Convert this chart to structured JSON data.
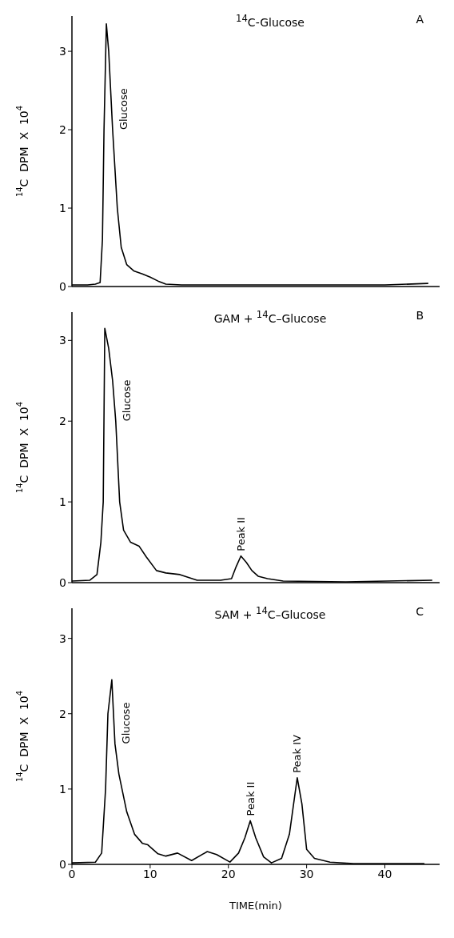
{
  "chart_data": [
    {
      "type": "line",
      "title": "$^{14}$C-Glucose",
      "ylabel": "$^{14}$C  DPM  X  10$^{4}$",
      "color": "#000000",
      "marker": "none",
      "line_style": "solid",
      "tick_labels": "y",
      "x": [
        0,
        2,
        3,
        3.6,
        3.9,
        4.1,
        4.4,
        4.7,
        5.2,
        5.8,
        6.3,
        7,
        7.9,
        9,
        10,
        11,
        12,
        14,
        20,
        30,
        40,
        45.5
      ],
      "values": [
        0.02,
        0.02,
        0.03,
        0.05,
        0.6,
        2.0,
        3.35,
        3.0,
        2.0,
        1.0,
        0.5,
        0.28,
        0.2,
        0.16,
        0.12,
        0.07,
        0.03,
        0.02,
        0.02,
        0.02,
        0.02,
        0.04
      ],
      "xlim": [
        0,
        47
      ],
      "xticks": [
        0,
        10,
        20,
        30,
        40
      ],
      "ylim": [
        0,
        3.45
      ],
      "yticks": [
        0,
        1,
        2,
        3
      ],
      "annotations": [
        "A",
        {
          "text": "Glucose",
          "x": 5.2,
          "y": 2.0
        }
      ]
    },
    {
      "type": "line",
      "title": "GAM + $^{14}$C–Glucose",
      "ylabel": "$^{14}$C  DPM  X  10$^{4}$",
      "color": "#000000",
      "marker": "none",
      "line_style": "solid",
      "tick_labels": "y",
      "x": [
        0,
        2.3,
        3.2,
        3.7,
        4.0,
        4.2,
        4.7,
        5.2,
        5.6,
        6.1,
        6.6,
        7.5,
        8.6,
        9.5,
        10.8,
        12,
        13.8,
        16,
        19,
        20.4,
        21.0,
        21.6,
        22.3,
        23.0,
        23.8,
        25,
        27,
        35,
        46
      ],
      "values": [
        0.02,
        0.03,
        0.1,
        0.5,
        1.0,
        3.15,
        2.9,
        2.5,
        2.0,
        1.0,
        0.65,
        0.5,
        0.45,
        0.32,
        0.15,
        0.12,
        0.1,
        0.03,
        0.03,
        0.05,
        0.2,
        0.33,
        0.25,
        0.15,
        0.08,
        0.05,
        0.02,
        0.01,
        0.03
      ],
      "xlim": [
        0,
        47
      ],
      "xticks": [
        0,
        10,
        20,
        30,
        40
      ],
      "ylim": [
        0,
        3.35
      ],
      "yticks": [
        0,
        1,
        2,
        3
      ],
      "annotations": [
        "B",
        {
          "text": "Glucose",
          "x": 5.6,
          "y": 2.0
        },
        {
          "text": "Peak II",
          "x": 21.6,
          "y": 0.33
        }
      ]
    },
    {
      "type": "line",
      "title": "SAM + $^{14}$C–Glucose",
      "ylabel": "$^{14}$C  DPM  X  10$^{4}$",
      "xlabel": "TIME(min)",
      "color": "#000000",
      "marker": "none",
      "line_style": "solid",
      "x": [
        0,
        3,
        3.8,
        4.3,
        4.6,
        5.1,
        5.5,
        6,
        7,
        8,
        9,
        9.7,
        11,
        12,
        13.5,
        15.3,
        17.3,
        18.5,
        20.2,
        21.3,
        22.1,
        22.8,
        23.5,
        24.5,
        25.5,
        26.8,
        27.8,
        28.8,
        29.4,
        30,
        31,
        33,
        36,
        45
      ],
      "values": [
        0.02,
        0.03,
        0.15,
        1.0,
        2.0,
        2.45,
        1.6,
        1.2,
        0.7,
        0.4,
        0.28,
        0.26,
        0.14,
        0.11,
        0.15,
        0.05,
        0.17,
        0.13,
        0.03,
        0.15,
        0.35,
        0.58,
        0.35,
        0.1,
        0.02,
        0.08,
        0.4,
        1.15,
        0.8,
        0.2,
        0.08,
        0.03,
        0.01,
        0.01
      ],
      "xlim": [
        0,
        47
      ],
      "xticks": [
        0,
        10,
        20,
        30,
        40
      ],
      "ylim": [
        0,
        3.4
      ],
      "yticks": [
        0,
        1,
        2,
        3
      ],
      "annotations": [
        "C",
        {
          "text": "Glucose",
          "x": 5.5,
          "y": 1.6
        },
        {
          "text": "Peak II",
          "x": 22.8,
          "y": 0.58
        },
        {
          "text": "Peak IV",
          "x": 28.8,
          "y": 1.15
        }
      ]
    }
  ]
}
